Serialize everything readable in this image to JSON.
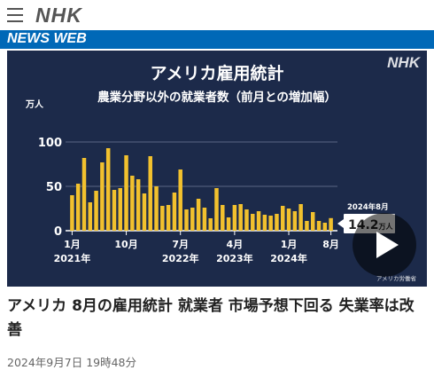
{
  "header": {
    "menu_icon": "hamburger-menu-icon",
    "logo": "NHK",
    "section": "NEWS WEB"
  },
  "video": {
    "title": "アメリカ雇用統計",
    "subtitle": "農業分野以外の就業者数（前月との増加幅）",
    "brand": "NHK",
    "unit_label": "万人",
    "callout_date": "2024年8月",
    "callout_value": "14.2",
    "callout_unit": "万人",
    "source": "アメリカ労働省",
    "play_icon": "play-icon"
  },
  "chart_data": {
    "type": "bar",
    "title": "アメリカ雇用統計",
    "subtitle": "農業分野以外の就業者数（前月との増加幅）",
    "ylabel": "万人",
    "ylim": [
      0,
      120
    ],
    "yticks": [
      0,
      50,
      100
    ],
    "grid": true,
    "bar_color": "#f2c12e",
    "x_tick_labels": [
      {
        "index": 0,
        "month": "1月",
        "year": "2021年"
      },
      {
        "index": 9,
        "month": "10月",
        "year": ""
      },
      {
        "index": 18,
        "month": "7月",
        "year": "2022年"
      },
      {
        "index": 27,
        "month": "4月",
        "year": "2023年"
      },
      {
        "index": 36,
        "month": "1月",
        "year": "2024年"
      },
      {
        "index": 43,
        "month": "8月",
        "year": ""
      }
    ],
    "values": [
      40,
      53,
      82,
      32,
      45,
      77,
      93,
      46,
      48,
      85,
      62,
      58,
      42,
      84,
      50,
      28,
      29,
      43,
      69,
      24,
      26,
      36,
      26,
      14,
      48,
      29,
      15,
      29,
      30,
      24,
      19,
      22,
      18,
      17,
      19,
      28,
      25,
      22,
      30,
      11,
      21,
      11,
      9,
      14.2
    ],
    "callout": {
      "label": "2024年8月",
      "value": "14.2",
      "unit": "万人"
    }
  },
  "article": {
    "headline": "アメリカ 8月の雇用統計 就業者 市場予想下回る 失業率は改善",
    "timestamp": "2024年9月7日 19時48分"
  },
  "colors": {
    "accent": "#0068b7",
    "video_bg": "#1c2a4a",
    "bar": "#f2c12e"
  }
}
